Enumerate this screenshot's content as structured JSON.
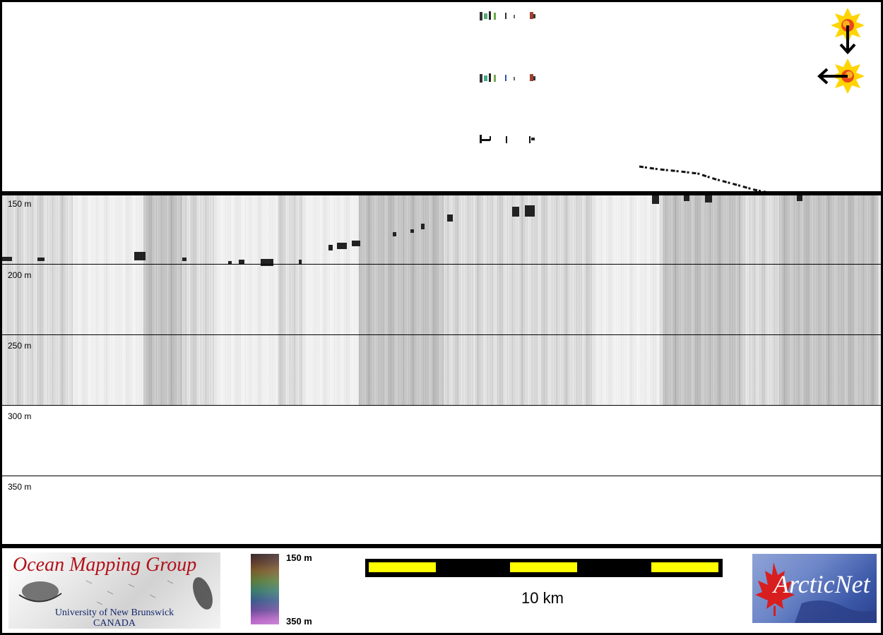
{
  "section": {
    "depth_labels": [
      "150 m",
      "200 m",
      "250 m",
      "300 m",
      "350 m"
    ]
  },
  "legend": {
    "logo_group": {
      "title": "Ocean Mapping Group",
      "subtitle_line1": "University of New Brunswick",
      "subtitle_line2": "CANADA"
    },
    "colorbar": {
      "top_label": "150 m",
      "bottom_label": "350 m"
    },
    "scalebar": {
      "label": "10 km"
    },
    "partner_logo": {
      "text": "ArcticNet"
    }
  },
  "colors": {
    "scale_fill": "#ffff00",
    "logo_title": "#b1121a",
    "logo_subtitle": "#14286e",
    "sun_outer": "#ffd400",
    "sun_inner": "#e8481a"
  },
  "icons": [
    "sun-marker-icon",
    "arrow-down-icon",
    "arrow-left-icon",
    "maple-leaf-icon",
    "fish-icon"
  ]
}
